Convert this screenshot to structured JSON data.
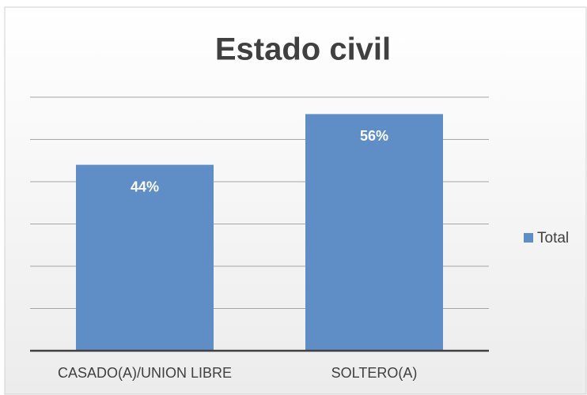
{
  "chart_data": {
    "type": "bar",
    "title": "Estado civil",
    "categories": [
      "CASADO(A)/UNION LIBRE",
      "SOLTERO(A)"
    ],
    "series": [
      {
        "name": "Total",
        "color": "#5f8dc6",
        "values": [
          44,
          56
        ],
        "value_labels": [
          "44%",
          "56%"
        ]
      }
    ],
    "ylim": [
      0,
      60
    ],
    "yticks": [
      0,
      10,
      20,
      30,
      40,
      50,
      60
    ],
    "grid": true,
    "legend": "right"
  }
}
